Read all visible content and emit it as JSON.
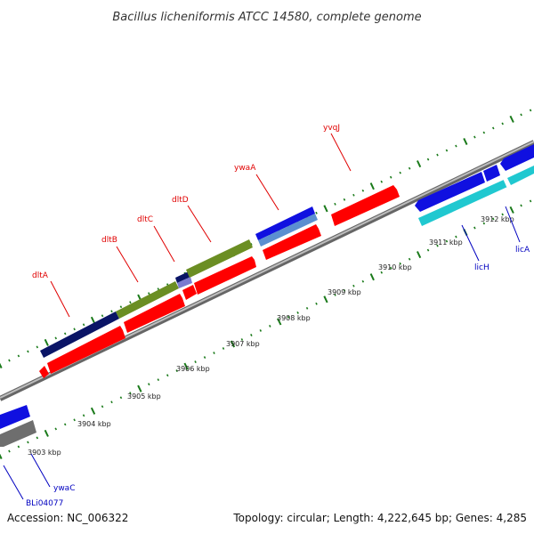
{
  "header": {
    "title": "Bacillus licheniformis ATCC 14580, complete genome"
  },
  "footer": {
    "accession": "Accession: NC_006322",
    "summary": "Topology: circular; Length: 4,222,645 bp; Genes: 4,285"
  },
  "colors": {
    "cds_forward_red": "#ff0000",
    "dlt_operon_navy": "#0a1466",
    "dlt_operon_olive": "#6b8e23",
    "blue_gene": "#1010e0",
    "steelblue_gene": "#5b8fd0",
    "cyan_gene": "#20c8d0",
    "gray_gene": "#6e6e6e",
    "backbone": "#999999",
    "ticks": "#1a7a1a",
    "label_red": "#e00000",
    "label_blue": "#0000c0"
  },
  "kbp_labels": [
    "3903 kbp",
    "3904 kbp",
    "3905 kbp",
    "3906 kbp",
    "3907 kbp",
    "3908 kbp",
    "3909 kbp",
    "3910 kbp",
    "3911 kbp",
    "3912 kbp"
  ],
  "gene_labels": [
    {
      "name": "dltA",
      "strand": "forward"
    },
    {
      "name": "dltB",
      "strand": "forward"
    },
    {
      "name": "dltC",
      "strand": "forward"
    },
    {
      "name": "dltD",
      "strand": "forward"
    },
    {
      "name": "ywaA",
      "strand": "forward"
    },
    {
      "name": "yvqJ",
      "strand": "forward"
    },
    {
      "name": "licH",
      "strand": "reverse"
    },
    {
      "name": "licA",
      "strand": "reverse"
    },
    {
      "name": "BLi04077",
      "strand": "reverse"
    },
    {
      "name": "ywaC",
      "strand": "reverse"
    }
  ]
}
